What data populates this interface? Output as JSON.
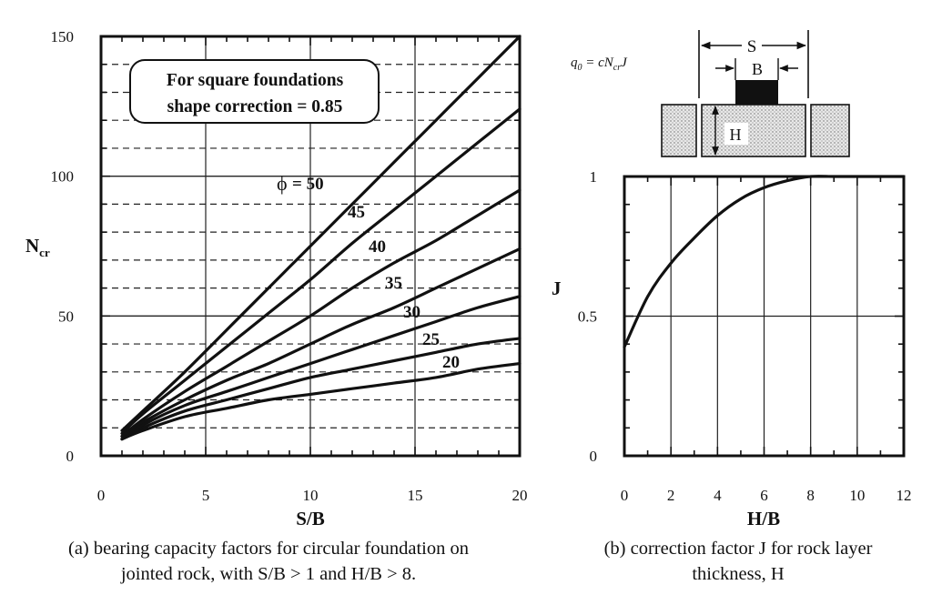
{
  "chart_data": [
    {
      "type": "line",
      "xlabel": "S/B",
      "ylabel": "N",
      "ylabel_sub": "cr",
      "xlim": [
        0,
        20
      ],
      "ylim": [
        0,
        150
      ],
      "xticks": [
        0,
        5,
        10,
        15,
        20
      ],
      "yticks": [
        0,
        50,
        100,
        150
      ],
      "annotation": [
        "For square foundations",
        "shape correction = 0.85"
      ],
      "phi_symbol": "ϕ",
      "series": [
        {
          "name": "50",
          "label": "= 50",
          "x": [
            1,
            2,
            4,
            6,
            8,
            10,
            12,
            14,
            16,
            18,
            20
          ],
          "y": [
            9,
            16,
            30,
            45,
            60,
            75,
            90,
            105,
            120,
            135,
            150
          ]
        },
        {
          "name": "45",
          "label": "45",
          "x": [
            1,
            2,
            4,
            6,
            8,
            10,
            12,
            14,
            16,
            18,
            20
          ],
          "y": [
            8,
            15,
            27,
            39,
            51,
            63,
            76,
            88,
            100,
            112,
            124
          ]
        },
        {
          "name": "40",
          "label": "40",
          "x": [
            1,
            2,
            4,
            6,
            8,
            10,
            12,
            14,
            16,
            18,
            20
          ],
          "y": [
            7,
            13,
            23,
            32,
            41,
            50,
            60,
            69,
            77,
            86,
            95
          ]
        },
        {
          "name": "35",
          "label": "35",
          "x": [
            1,
            2,
            4,
            6,
            8,
            10,
            12,
            14,
            16,
            18,
            20
          ],
          "y": [
            7,
            12,
            20,
            27,
            33,
            40,
            47,
            53,
            60,
            67,
            74
          ]
        },
        {
          "name": "30",
          "label": "30",
          "x": [
            1,
            2,
            4,
            6,
            8,
            10,
            12,
            14,
            16,
            18,
            20
          ],
          "y": [
            6,
            11,
            18,
            23,
            28,
            33,
            38,
            43,
            48,
            53,
            57
          ]
        },
        {
          "name": "25",
          "label": "25",
          "x": [
            1,
            2,
            4,
            6,
            8,
            10,
            12,
            14,
            16,
            18,
            20
          ],
          "y": [
            6,
            10,
            16,
            20,
            24,
            28,
            31,
            34,
            37,
            40,
            42
          ]
        },
        {
          "name": "20",
          "label": "20",
          "x": [
            1,
            2,
            4,
            6,
            8,
            10,
            12,
            14,
            16,
            18,
            20
          ],
          "y": [
            6,
            9,
            14,
            17,
            20,
            22,
            24,
            26,
            28,
            31,
            33
          ]
        }
      ]
    },
    {
      "type": "line",
      "xlabel": "H/B",
      "ylabel": "J",
      "xlim": [
        0,
        12
      ],
      "ylim": [
        0,
        1
      ],
      "xticks": [
        0,
        2,
        4,
        6,
        8,
        10,
        12
      ],
      "yticks": [
        0,
        0.5,
        1
      ],
      "yticklabels": [
        "0",
        "0.5",
        "1"
      ],
      "series": [
        {
          "x": [
            0,
            1,
            2,
            3,
            4,
            5,
            6,
            7,
            8,
            9,
            10,
            12
          ],
          "y": [
            0.39,
            0.57,
            0.69,
            0.78,
            0.86,
            0.92,
            0.96,
            0.985,
            1.0,
            1.0,
            1.0,
            1.0
          ]
        }
      ],
      "inset": {
        "formula_prefix": "q",
        "formula_sub0": "0",
        "formula_mid": " = cN",
        "formula_sub1": "cr",
        "formula_end": "J",
        "S": "S",
        "B": "B",
        "H": "H"
      }
    }
  ],
  "captions": {
    "a": [
      "(a) bearing capacity factors for circular foundation on",
      "jointed rock, with S/B > 1 and H/B > 8."
    ],
    "b": [
      "(b) correction factor J for rock layer",
      "thickness, H"
    ]
  }
}
